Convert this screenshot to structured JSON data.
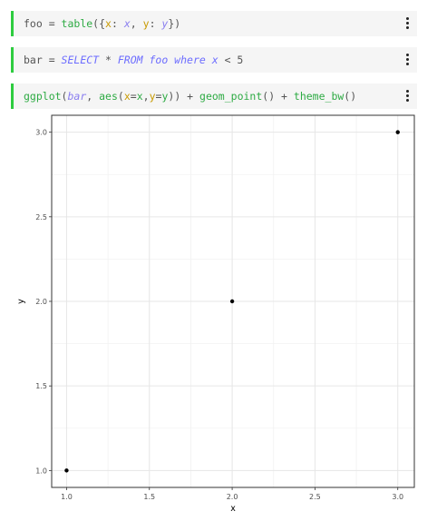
{
  "cells": [
    {
      "tokens": [
        {
          "t": "foo = ",
          "c": "t-plain"
        },
        {
          "t": "table",
          "c": "t-fn"
        },
        {
          "t": "({",
          "c": "t-plain"
        },
        {
          "t": "x",
          "c": "t-str"
        },
        {
          "t": ": ",
          "c": "t-plain"
        },
        {
          "t": "x",
          "c": "t-var"
        },
        {
          "t": ", ",
          "c": "t-plain"
        },
        {
          "t": "y",
          "c": "t-str"
        },
        {
          "t": ": ",
          "c": "t-plain"
        },
        {
          "t": "y",
          "c": "t-var"
        },
        {
          "t": "})",
          "c": "t-plain"
        }
      ]
    },
    {
      "tokens": [
        {
          "t": "bar = ",
          "c": "t-plain"
        },
        {
          "t": "SELECT",
          "c": "t-kw"
        },
        {
          "t": " * ",
          "c": "t-plain"
        },
        {
          "t": "FROM foo where x",
          "c": "t-kw"
        },
        {
          "t": " < 5",
          "c": "t-plain"
        }
      ]
    },
    {
      "tokens": [
        {
          "t": "ggplot",
          "c": "t-fn"
        },
        {
          "t": "(",
          "c": "t-plain"
        },
        {
          "t": "bar",
          "c": "t-var"
        },
        {
          "t": ", ",
          "c": "t-plain"
        },
        {
          "t": "aes",
          "c": "t-fn"
        },
        {
          "t": "(",
          "c": "t-plain"
        },
        {
          "t": "x",
          "c": "t-str"
        },
        {
          "t": "=",
          "c": "t-plain"
        },
        {
          "t": "x",
          "c": "t-fn"
        },
        {
          "t": ",",
          "c": "t-plain"
        },
        {
          "t": "y",
          "c": "t-str"
        },
        {
          "t": "=",
          "c": "t-plain"
        },
        {
          "t": "y",
          "c": "t-fn"
        },
        {
          "t": ")) + ",
          "c": "t-plain"
        },
        {
          "t": "geom_point",
          "c": "t-fn"
        },
        {
          "t": "() + ",
          "c": "t-plain"
        },
        {
          "t": "theme_bw",
          "c": "t-fn"
        },
        {
          "t": "()",
          "c": "t-plain"
        }
      ]
    }
  ],
  "menu_icon": "vertical-ellipsis-icon",
  "chart_data": {
    "type": "scatter",
    "x": [
      1.0,
      2.0,
      3.0
    ],
    "y": [
      1.0,
      2.0,
      3.0
    ],
    "xlabel": "x",
    "ylabel": "y",
    "xlim": [
      0.91,
      3.1
    ],
    "ylim": [
      0.9,
      3.1
    ],
    "x_ticks": [
      "1.0",
      "1.5",
      "2.0",
      "2.5",
      "3.0"
    ],
    "y_ticks": [
      "1.0",
      "1.5",
      "2.0",
      "2.5",
      "3.0"
    ],
    "grid": true,
    "point_color": "#000000"
  }
}
